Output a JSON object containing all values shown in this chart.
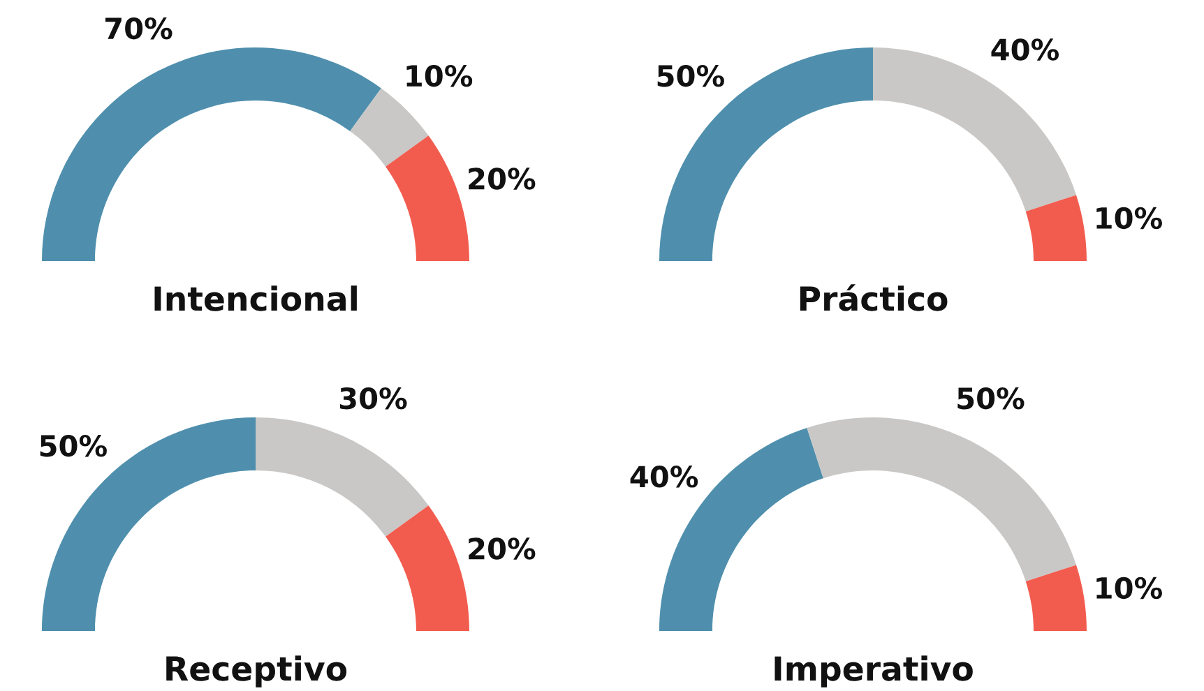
{
  "chart_data": [
    {
      "type": "donut",
      "title": "Intencional",
      "categories": [
        null,
        null,
        null
      ],
      "values": [
        70,
        10,
        20
      ],
      "colors": [
        "#4f8fad",
        "#c9c8c7",
        "#f25c4f"
      ],
      "value_labels": [
        "70%",
        "10%",
        "20%"
      ]
    },
    {
      "type": "donut",
      "title": "Práctico",
      "categories": [
        null,
        null,
        null
      ],
      "values": [
        50,
        40,
        10
      ],
      "colors": [
        "#4f8fad",
        "#c9c8c7",
        "#f25c4f"
      ],
      "value_labels": [
        "50%",
        "40%",
        "10%"
      ]
    },
    {
      "type": "donut",
      "title": "Receptivo",
      "categories": [
        null,
        null,
        null
      ],
      "values": [
        50,
        30,
        20
      ],
      "colors": [
        "#4f8fad",
        "#c9c8c7",
        "#f25c4f"
      ],
      "value_labels": [
        "50%",
        "30%",
        "20%"
      ]
    },
    {
      "type": "donut",
      "title": "Imperativo",
      "categories": [
        null,
        null,
        null
      ],
      "values": [
        40,
        50,
        10
      ],
      "colors": [
        "#4f8fad",
        "#c9c8c7",
        "#f25c4f"
      ],
      "value_labels": [
        "40%",
        "50%",
        "10%"
      ]
    }
  ]
}
